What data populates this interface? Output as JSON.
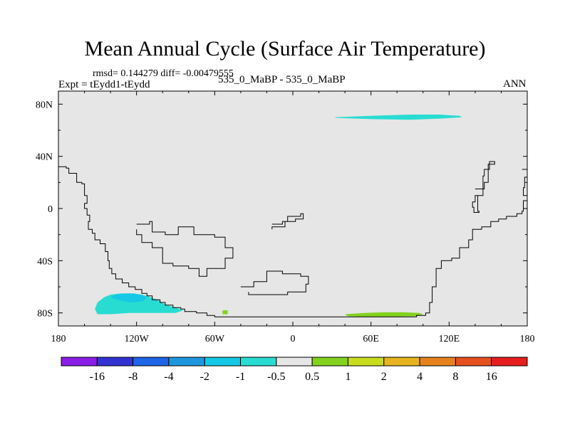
{
  "title": "Mean Annual Cycle (Surface Air Temperature)",
  "stats": "rmsd= 0.144279 diff= -0.00479555",
  "experiment": "Expt = tEydd1-tEydd",
  "runs": "535_0_MaBP - 535_0_MaBP",
  "season": "ANN",
  "chart_data": {
    "type": "heatmap",
    "title": "Mean Annual Cycle (Surface Air Temperature)",
    "xlabel": "",
    "ylabel": "",
    "xlim": [
      -180,
      180
    ],
    "ylim": [
      -90,
      90
    ],
    "x_ticks": [
      {
        "value": -180,
        "label": "180"
      },
      {
        "value": -120,
        "label": "120W"
      },
      {
        "value": -60,
        "label": "60W"
      },
      {
        "value": 0,
        "label": "0"
      },
      {
        "value": 60,
        "label": "60E"
      },
      {
        "value": 120,
        "label": "120E"
      },
      {
        "value": 180,
        "label": "180"
      }
    ],
    "y_ticks": [
      {
        "value": 80,
        "label": "80N"
      },
      {
        "value": 40,
        "label": "40N"
      },
      {
        "value": 0,
        "label": "0"
      },
      {
        "value": -40,
        "label": "40S"
      },
      {
        "value": -80,
        "label": "80S"
      }
    ],
    "background_color": "#e6e6e6",
    "colorbar": {
      "labels": [
        "-16",
        "-8",
        "-4",
        "-2",
        "-1",
        "-0.5",
        "0.5",
        "1",
        "2",
        "4",
        "8",
        "16"
      ],
      "colors": [
        "#8a1ee6",
        "#3232d2",
        "#1e64e6",
        "#1e96dc",
        "#14c8e6",
        "#28dcd2",
        "#e6e6e6",
        "#82d21e",
        "#c8dc1e",
        "#e6b41e",
        "#e6821e",
        "#e6501e",
        "#e61e1e"
      ]
    },
    "anomaly_regions": [
      {
        "name": "arctic-cool-anomaly",
        "range": "-1 to -0.5",
        "color": "#28dcd2",
        "outline": [
          [
            32,
            70
          ],
          [
            60,
            71
          ],
          [
            90,
            72
          ],
          [
            113,
            72
          ],
          [
            128,
            71
          ],
          [
            130,
            70
          ],
          [
            115,
            69
          ],
          [
            90,
            68
          ],
          [
            60,
            68.5
          ],
          [
            33,
            69.5
          ]
        ]
      },
      {
        "name": "south-pacific-cool-anomaly",
        "range": "-1 to -0.5",
        "color": "#28dcd2",
        "outline": [
          [
            -150,
            -81
          ],
          [
            -152,
            -77
          ],
          [
            -150,
            -72
          ],
          [
            -145,
            -68
          ],
          [
            -140,
            -66
          ],
          [
            -132,
            -65
          ],
          [
            -122,
            -65
          ],
          [
            -112,
            -67
          ],
          [
            -104,
            -70
          ],
          [
            -97,
            -74
          ],
          [
            -90,
            -76
          ],
          [
            -84,
            -78
          ],
          [
            -90,
            -80
          ],
          [
            -105,
            -80
          ],
          [
            -125,
            -80
          ],
          [
            -140,
            -81
          ]
        ]
      },
      {
        "name": "south-pacific-cool-anomaly-core",
        "range": "-2 to -1",
        "color": "#14c8e6",
        "outline": [
          [
            -136,
            -66
          ],
          [
            -126,
            -65
          ],
          [
            -116,
            -66
          ],
          [
            -112,
            -68
          ],
          [
            -115,
            -71
          ],
          [
            -125,
            -72
          ],
          [
            -135,
            -70
          ],
          [
            -140,
            -68
          ]
        ]
      },
      {
        "name": "antarctic-warm-anomaly",
        "range": "0.5 to 1",
        "color": "#82d21e",
        "outline": [
          [
            40,
            -81
          ],
          [
            55,
            -80
          ],
          [
            70,
            -79.5
          ],
          [
            85,
            -79.5
          ],
          [
            97,
            -80
          ],
          [
            100,
            -81
          ],
          [
            95,
            -82.5
          ],
          [
            75,
            -83
          ],
          [
            55,
            -83
          ],
          [
            42,
            -82.5
          ]
        ]
      },
      {
        "name": "small-warm-anomaly",
        "range": "0.5 to 1",
        "color": "#82d21e",
        "outline": [
          [
            -54,
            -78
          ],
          [
            -50,
            -78
          ],
          [
            -50,
            -81
          ],
          [
            -54,
            -81
          ]
        ]
      }
    ],
    "coastlines": [
      {
        "name": "west-continent-coastline",
        "points": [
          [
            -180,
            32
          ],
          [
            -174,
            31
          ],
          [
            -172,
            27
          ],
          [
            -168,
            27
          ],
          [
            -166,
            20
          ],
          [
            -162,
            19
          ],
          [
            -160,
            10
          ],
          [
            -158,
            4
          ],
          [
            -160,
            0
          ],
          [
            -158,
            -5
          ],
          [
            -156,
            -10
          ],
          [
            -157,
            -16
          ],
          [
            -154,
            -19
          ],
          [
            -152,
            -24
          ],
          [
            -148,
            -27
          ],
          [
            -144,
            -33
          ],
          [
            -142,
            -40
          ],
          [
            -141,
            -46
          ],
          [
            -139,
            -50
          ],
          [
            -136,
            -54
          ],
          [
            -131,
            -57
          ],
          [
            -126,
            -60
          ],
          [
            -121,
            -62
          ],
          [
            -116,
            -65
          ],
          [
            -112,
            -67
          ],
          [
            -108,
            -70
          ],
          [
            -102,
            -72
          ],
          [
            -98,
            -74
          ],
          [
            -92,
            -76
          ],
          [
            -86,
            -77
          ],
          [
            -83,
            -79
          ],
          [
            -74,
            -80
          ],
          [
            -66,
            -82
          ],
          [
            -60,
            -83
          ],
          [
            -50,
            -83
          ],
          [
            -20,
            -83
          ],
          [
            10,
            -83
          ],
          [
            40,
            -83
          ],
          [
            60,
            -83
          ],
          [
            80,
            -83
          ],
          [
            95,
            -82
          ],
          [
            102,
            -80
          ],
          [
            105,
            -72
          ],
          [
            107,
            -60
          ],
          [
            110,
            -46
          ],
          [
            114,
            -40
          ],
          [
            122,
            -38
          ],
          [
            128,
            -30
          ],
          [
            135,
            -24
          ],
          [
            138,
            -16
          ],
          [
            145,
            -14
          ],
          [
            152,
            -10
          ],
          [
            158,
            -8
          ],
          [
            164,
            -6
          ],
          [
            172,
            -4
          ],
          [
            176,
            -2
          ],
          [
            177,
            6
          ],
          [
            180,
            8
          ]
        ]
      },
      {
        "name": "upper-right-island",
        "points": [
          [
            140,
            15
          ],
          [
            147,
            20
          ],
          [
            150,
            28
          ],
          [
            150,
            34
          ],
          [
            155,
            36
          ],
          [
            151,
            30
          ],
          [
            147,
            25
          ],
          [
            146,
            10
          ],
          [
            140,
            5
          ],
          [
            138,
            1
          ],
          [
            139,
            -3
          ],
          [
            143,
            -2
          ],
          [
            142,
            10
          ]
        ]
      },
      {
        "name": "far-east-island",
        "points": [
          [
            176,
            30
          ],
          [
            180,
            33
          ],
          [
            180,
            24
          ],
          [
            178,
            16
          ],
          [
            177,
            10
          ],
          [
            180,
            8
          ]
        ]
      },
      {
        "name": "central-continent",
        "points": [
          [
            -120,
            -12
          ],
          [
            -110,
            -10
          ],
          [
            -108,
            -18
          ],
          [
            -98,
            -20
          ],
          [
            -88,
            -14
          ],
          [
            -78,
            -14
          ],
          [
            -76,
            -20
          ],
          [
            -60,
            -22
          ],
          [
            -52,
            -30
          ],
          [
            -46,
            -38
          ],
          [
            -52,
            -46
          ],
          [
            -66,
            -52
          ],
          [
            -72,
            -46
          ],
          [
            -80,
            -44
          ],
          [
            -92,
            -42
          ],
          [
            -100,
            -30
          ],
          [
            -108,
            -26
          ],
          [
            -116,
            -20
          ],
          [
            -120,
            -16
          ]
        ]
      },
      {
        "name": "central-island",
        "points": [
          [
            -16,
            -12
          ],
          [
            -8,
            -10
          ],
          [
            -4,
            -6
          ],
          [
            6,
            -4
          ],
          [
            8,
            -8
          ],
          [
            2,
            -10
          ],
          [
            -6,
            -14
          ],
          [
            -16,
            -16
          ]
        ]
      },
      {
        "name": "southern-island",
        "points": [
          [
            -40,
            -60
          ],
          [
            -30,
            -56
          ],
          [
            -20,
            -48
          ],
          [
            -8,
            -50
          ],
          [
            6,
            -52
          ],
          [
            12,
            -58
          ],
          [
            10,
            -64
          ],
          [
            -4,
            -66
          ],
          [
            -20,
            -66
          ],
          [
            -34,
            -64
          ]
        ]
      }
    ]
  }
}
